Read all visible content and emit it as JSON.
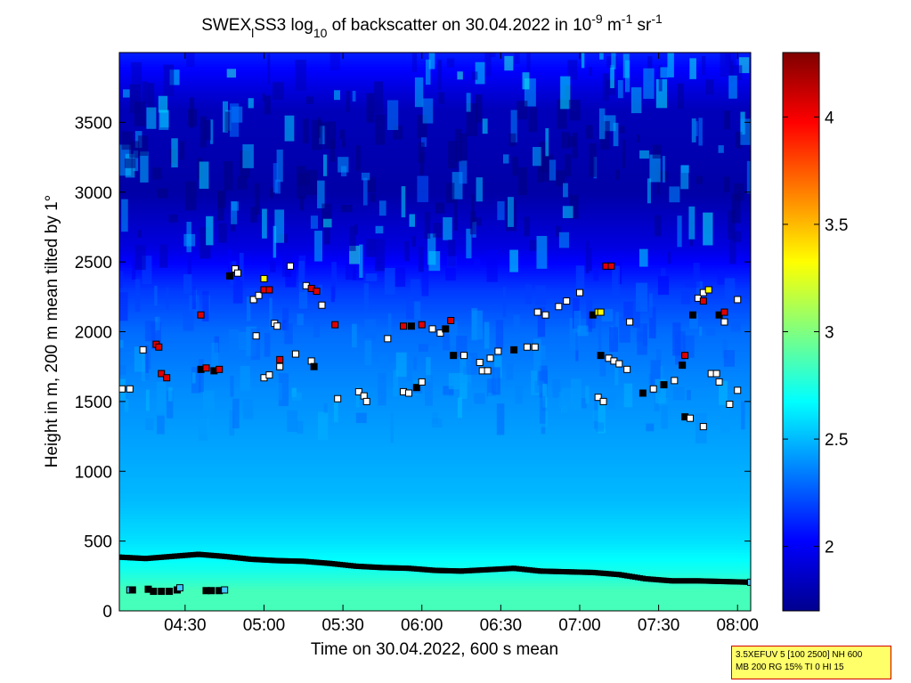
{
  "chart_data": {
    "type": "heatmap",
    "title": {
      "prefix": "SWEX",
      "sub1": "l",
      "mid": "SS3 log",
      "sub2": "10",
      "text1": " of backscatter on 30.04.2022 in 10",
      "sup1": "-9",
      "text2": " m",
      "sup2": "-1",
      "text3": " sr",
      "sup3": "-1"
    },
    "xlabel": "Time on 30.04.2022, 600 s mean",
    "ylabel": "Height in m, 200 m mean tilted by 1°",
    "xlim": [
      "04:05",
      "08:05"
    ],
    "ylim": [
      0,
      4000
    ],
    "xticks": [
      "04:30",
      "05:00",
      "05:30",
      "06:00",
      "06:30",
      "07:00",
      "07:30",
      "08:00"
    ],
    "yticks": [
      0,
      500,
      1000,
      1500,
      2000,
      2500,
      3000,
      3500
    ],
    "colorbar": {
      "range": [
        1.7,
        4.3
      ],
      "ticks": [
        "2",
        "2.5",
        "3",
        "3.5",
        "4"
      ],
      "colormap": "jet"
    },
    "field_levels": [
      {
        "height": 0,
        "value": 2.85
      },
      {
        "height": 150,
        "value": 2.85
      },
      {
        "height": 300,
        "value": 2.72
      },
      {
        "height": 500,
        "value": 2.6
      },
      {
        "height": 800,
        "value": 2.5
      },
      {
        "height": 1200,
        "value": 2.44
      },
      {
        "height": 1600,
        "value": 2.38
      },
      {
        "height": 2000,
        "value": 2.3
      },
      {
        "height": 2300,
        "value": 2.17
      },
      {
        "height": 2600,
        "value": 1.95
      },
      {
        "height": 3000,
        "value": 1.8
      },
      {
        "height": 3600,
        "value": 1.85
      },
      {
        "height": 4000,
        "value": 2.1
      }
    ],
    "boundary_layer_height": [
      {
        "t": "04:05",
        "h": 385
      },
      {
        "t": "04:15",
        "h": 375
      },
      {
        "t": "04:25",
        "h": 390
      },
      {
        "t": "04:35",
        "h": 405
      },
      {
        "t": "04:45",
        "h": 390
      },
      {
        "t": "04:55",
        "h": 370
      },
      {
        "t": "05:05",
        "h": 360
      },
      {
        "t": "05:15",
        "h": 355
      },
      {
        "t": "05:25",
        "h": 340
      },
      {
        "t": "05:35",
        "h": 320
      },
      {
        "t": "05:45",
        "h": 310
      },
      {
        "t": "05:55",
        "h": 305
      },
      {
        "t": "06:05",
        "h": 290
      },
      {
        "t": "06:15",
        "h": 285
      },
      {
        "t": "06:25",
        "h": 295
      },
      {
        "t": "06:35",
        "h": 305
      },
      {
        "t": "06:45",
        "h": 285
      },
      {
        "t": "06:55",
        "h": 280
      },
      {
        "t": "07:05",
        "h": 275
      },
      {
        "t": "07:15",
        "h": 260
      },
      {
        "t": "07:25",
        "h": 230
      },
      {
        "t": "07:35",
        "h": 215
      },
      {
        "t": "07:45",
        "h": 215
      },
      {
        "t": "07:55",
        "h": 210
      },
      {
        "t": "08:05",
        "h": 205
      }
    ],
    "markers": [
      {
        "t": "04:06",
        "h": 1590,
        "c": "w"
      },
      {
        "t": "04:09",
        "h": 1590,
        "c": "w"
      },
      {
        "t": "04:14",
        "h": 1870,
        "c": "w"
      },
      {
        "t": "04:19",
        "h": 1910,
        "c": "r"
      },
      {
        "t": "04:20",
        "h": 1890,
        "c": "r"
      },
      {
        "t": "04:21",
        "h": 1700,
        "c": "r"
      },
      {
        "t": "04:23",
        "h": 1670,
        "c": "r"
      },
      {
        "t": "04:36",
        "h": 2120,
        "c": "r"
      },
      {
        "t": "04:36",
        "h": 1730,
        "c": "k"
      },
      {
        "t": "04:38",
        "h": 1740,
        "c": "r"
      },
      {
        "t": "04:41",
        "h": 1720,
        "c": "k"
      },
      {
        "t": "04:43",
        "h": 1730,
        "c": "r"
      },
      {
        "t": "04:47",
        "h": 2400,
        "c": "k"
      },
      {
        "t": "04:49",
        "h": 2450,
        "c": "w"
      },
      {
        "t": "04:50",
        "h": 2420,
        "c": "w"
      },
      {
        "t": "04:56",
        "h": 2230,
        "c": "w"
      },
      {
        "t": "04:58",
        "h": 2260,
        "c": "w"
      },
      {
        "t": "05:00",
        "h": 2380,
        "c": "y"
      },
      {
        "t": "05:00",
        "h": 2300,
        "c": "r"
      },
      {
        "t": "05:02",
        "h": 2300,
        "c": "r"
      },
      {
        "t": "04:57",
        "h": 1970,
        "c": "w"
      },
      {
        "t": "05:00",
        "h": 1670,
        "c": "w"
      },
      {
        "t": "05:02",
        "h": 1690,
        "c": "w"
      },
      {
        "t": "05:04",
        "h": 2060,
        "c": "w"
      },
      {
        "t": "05:05",
        "h": 2040,
        "c": "w"
      },
      {
        "t": "05:06",
        "h": 1800,
        "c": "r"
      },
      {
        "t": "05:06",
        "h": 1750,
        "c": "w"
      },
      {
        "t": "05:10",
        "h": 2470,
        "c": "w"
      },
      {
        "t": "05:12",
        "h": 1840,
        "c": "w"
      },
      {
        "t": "05:16",
        "h": 2330,
        "c": "w"
      },
      {
        "t": "05:18",
        "h": 2310,
        "c": "r"
      },
      {
        "t": "05:20",
        "h": 2290,
        "c": "r"
      },
      {
        "t": "05:18",
        "h": 1790,
        "c": "w"
      },
      {
        "t": "05:19",
        "h": 1750,
        "c": "k"
      },
      {
        "t": "05:22",
        "h": 2190,
        "c": "w"
      },
      {
        "t": "05:27",
        "h": 2050,
        "c": "r"
      },
      {
        "t": "05:28",
        "h": 1520,
        "c": "w"
      },
      {
        "t": "05:36",
        "h": 1570,
        "c": "w"
      },
      {
        "t": "05:38",
        "h": 1540,
        "c": "w"
      },
      {
        "t": "05:39",
        "h": 1500,
        "c": "w"
      },
      {
        "t": "05:47",
        "h": 1950,
        "c": "w"
      },
      {
        "t": "05:53",
        "h": 1570,
        "c": "w"
      },
      {
        "t": "05:55",
        "h": 1560,
        "c": "w"
      },
      {
        "t": "05:58",
        "h": 1600,
        "c": "k"
      },
      {
        "t": "06:00",
        "h": 1640,
        "c": "w"
      },
      {
        "t": "05:53",
        "h": 2040,
        "c": "r"
      },
      {
        "t": "05:56",
        "h": 2040,
        "c": "k"
      },
      {
        "t": "06:00",
        "h": 2050,
        "c": "r"
      },
      {
        "t": "06:04",
        "h": 2020,
        "c": "w"
      },
      {
        "t": "06:07",
        "h": 1990,
        "c": "w"
      },
      {
        "t": "06:09",
        "h": 2020,
        "c": "k"
      },
      {
        "t": "06:11",
        "h": 2080,
        "c": "r"
      },
      {
        "t": "06:12",
        "h": 1830,
        "c": "k"
      },
      {
        "t": "06:16",
        "h": 1830,
        "c": "w"
      },
      {
        "t": "06:22",
        "h": 1780,
        "c": "w"
      },
      {
        "t": "06:23",
        "h": 1720,
        "c": "w"
      },
      {
        "t": "06:25",
        "h": 1720,
        "c": "w"
      },
      {
        "t": "06:26",
        "h": 1810,
        "c": "w"
      },
      {
        "t": "06:29",
        "h": 1860,
        "c": "w"
      },
      {
        "t": "06:35",
        "h": 1870,
        "c": "k"
      },
      {
        "t": "06:40",
        "h": 1890,
        "c": "w"
      },
      {
        "t": "06:43",
        "h": 1890,
        "c": "w"
      },
      {
        "t": "06:44",
        "h": 2140,
        "c": "w"
      },
      {
        "t": "06:47",
        "h": 2120,
        "c": "w"
      },
      {
        "t": "06:52",
        "h": 2180,
        "c": "w"
      },
      {
        "t": "06:55",
        "h": 2220,
        "c": "w"
      },
      {
        "t": "07:00",
        "h": 2280,
        "c": "w"
      },
      {
        "t": "07:05",
        "h": 2120,
        "c": "k"
      },
      {
        "t": "07:07",
        "h": 2140,
        "c": "y"
      },
      {
        "t": "07:08",
        "h": 2140,
        "c": "y"
      },
      {
        "t": "07:08",
        "h": 1830,
        "c": "k"
      },
      {
        "t": "07:11",
        "h": 1810,
        "c": "w"
      },
      {
        "t": "07:13",
        "h": 1790,
        "c": "w"
      },
      {
        "t": "07:15",
        "h": 1770,
        "c": "w"
      },
      {
        "t": "07:10",
        "h": 2470,
        "c": "r"
      },
      {
        "t": "07:12",
        "h": 2470,
        "c": "r"
      },
      {
        "t": "07:07",
        "h": 1530,
        "c": "w"
      },
      {
        "t": "07:09",
        "h": 1500,
        "c": "w"
      },
      {
        "t": "07:18",
        "h": 1730,
        "c": "w"
      },
      {
        "t": "07:19",
        "h": 2070,
        "c": "w"
      },
      {
        "t": "07:24",
        "h": 1560,
        "c": "k"
      },
      {
        "t": "07:28",
        "h": 1590,
        "c": "w"
      },
      {
        "t": "07:32",
        "h": 1620,
        "c": "k"
      },
      {
        "t": "07:36",
        "h": 1650,
        "c": "w"
      },
      {
        "t": "07:39",
        "h": 1760,
        "c": "k"
      },
      {
        "t": "07:40",
        "h": 1830,
        "c": "r"
      },
      {
        "t": "07:40",
        "h": 1390,
        "c": "k"
      },
      {
        "t": "07:42",
        "h": 1380,
        "c": "w"
      },
      {
        "t": "07:47",
        "h": 1320,
        "c": "w"
      },
      {
        "t": "07:43",
        "h": 2120,
        "c": "k"
      },
      {
        "t": "07:45",
        "h": 2240,
        "c": "w"
      },
      {
        "t": "07:47",
        "h": 2280,
        "c": "w"
      },
      {
        "t": "07:49",
        "h": 2300,
        "c": "y"
      },
      {
        "t": "07:47",
        "h": 2220,
        "c": "r"
      },
      {
        "t": "07:50",
        "h": 1700,
        "c": "w"
      },
      {
        "t": "07:52",
        "h": 1700,
        "c": "w"
      },
      {
        "t": "07:53",
        "h": 1640,
        "c": "w"
      },
      {
        "t": "07:53",
        "h": 2120,
        "c": "k"
      },
      {
        "t": "07:55",
        "h": 2140,
        "c": "r"
      },
      {
        "t": "07:55",
        "h": 2070,
        "c": "w"
      },
      {
        "t": "07:57",
        "h": 1480,
        "c": "w"
      },
      {
        "t": "08:00",
        "h": 2230,
        "c": "w"
      },
      {
        "t": "08:00",
        "h": 1580,
        "c": "w"
      },
      {
        "t": "04:09",
        "h": 150,
        "c": "c"
      },
      {
        "t": "04:10",
        "h": 150,
        "c": "k"
      },
      {
        "t": "04:16",
        "h": 155,
        "c": "k"
      },
      {
        "t": "04:18",
        "h": 140,
        "c": "k"
      },
      {
        "t": "04:21",
        "h": 140,
        "c": "k"
      },
      {
        "t": "04:24",
        "h": 140,
        "c": "k"
      },
      {
        "t": "04:27",
        "h": 150,
        "c": "k"
      },
      {
        "t": "04:28",
        "h": 165,
        "c": "c"
      },
      {
        "t": "04:38",
        "h": 145,
        "c": "k"
      },
      {
        "t": "04:40",
        "h": 145,
        "c": "k"
      },
      {
        "t": "04:43",
        "h": 145,
        "c": "k"
      },
      {
        "t": "04:45",
        "h": 150,
        "c": "c"
      },
      {
        "t": "08:05",
        "h": 205,
        "c": "c"
      }
    ]
  },
  "info_box": {
    "line1": "3.5XEFUV 5 [100 2500] NH 600",
    "line2": "MB 200 RG 15% TI 0 HI 15",
    "border_color": "#d00000",
    "background_color": "#ffff6a"
  }
}
